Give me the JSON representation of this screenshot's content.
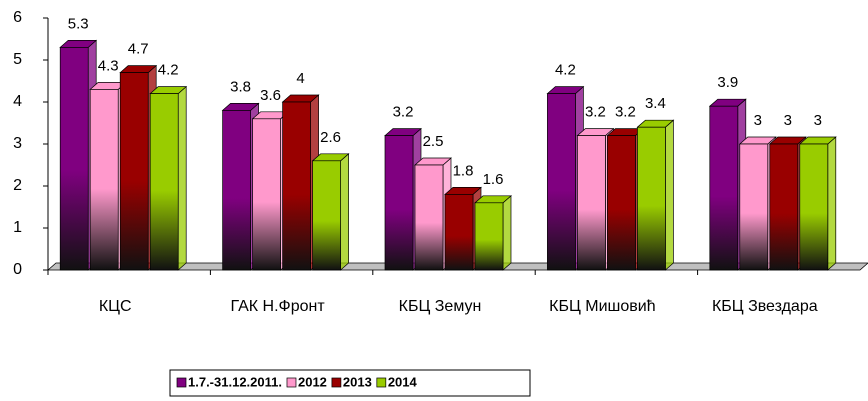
{
  "chart_data": {
    "type": "bar3d",
    "categories": [
      "КЦС",
      "ГАК Н.Фронт",
      "КБЦ Земун",
      "КБЦ Мишовић",
      "КБЦ Звездара"
    ],
    "series": [
      {
        "name": "1.7.-31.12.2011.",
        "color": "#800080",
        "values": [
          5.3,
          3.8,
          3.2,
          4.2,
          3.9
        ]
      },
      {
        "name": "2012",
        "color": "#ff99cc",
        "values": [
          4.3,
          3.6,
          2.5,
          3.2,
          3
        ]
      },
      {
        "name": "2013",
        "color": "#990000",
        "values": [
          4.7,
          4,
          1.8,
          3.2,
          3
        ]
      },
      {
        "name": "2014",
        "color": "#99cc00",
        "values": [
          4.2,
          2.6,
          1.6,
          3.4,
          3
        ]
      }
    ],
    "ylim": [
      0,
      6
    ],
    "yticks": [
      0,
      1,
      2,
      3,
      4,
      5,
      6
    ],
    "legend": "bottom"
  }
}
